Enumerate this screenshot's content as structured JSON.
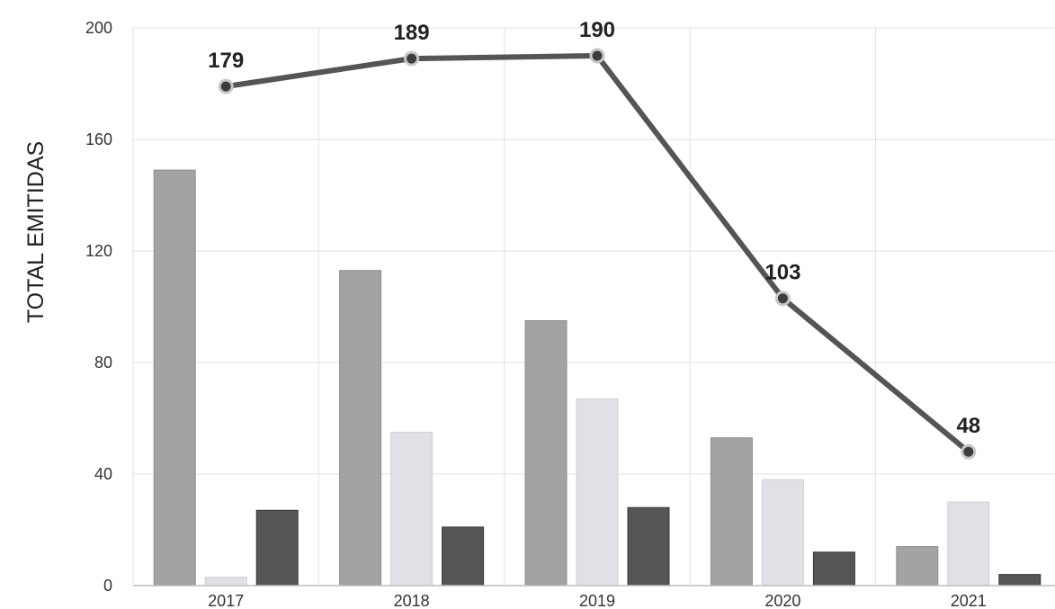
{
  "chart_data": {
    "type": "bar",
    "categories": [
      "2017",
      "2018",
      "2019",
      "2020",
      "2021"
    ],
    "series": [
      {
        "type": "bar",
        "values": [
          149,
          113,
          95,
          53,
          14
        ]
      },
      {
        "type": "bar",
        "values": [
          3,
          55,
          67,
          38,
          30
        ]
      },
      {
        "type": "bar",
        "values": [
          27,
          21,
          28,
          12,
          4
        ]
      },
      {
        "type": "line",
        "values": [
          179,
          189,
          190,
          103,
          48
        ]
      }
    ],
    "ylabel": "TOTAL EMITIDAS",
    "xlabel": "",
    "ylim": [
      0,
      200
    ],
    "yticks": [
      "0",
      "40",
      "80",
      "120",
      "160",
      "200"
    ],
    "grid": true,
    "colors": {
      "bar1": "#a3a3a3",
      "bar2": "#e2e0e6",
      "bar3": "#555555",
      "line": "#555555",
      "marker_fill": "#3d3d3d",
      "marker_stroke": "#c8c8c8",
      "grid": "#e2e2e2"
    }
  }
}
